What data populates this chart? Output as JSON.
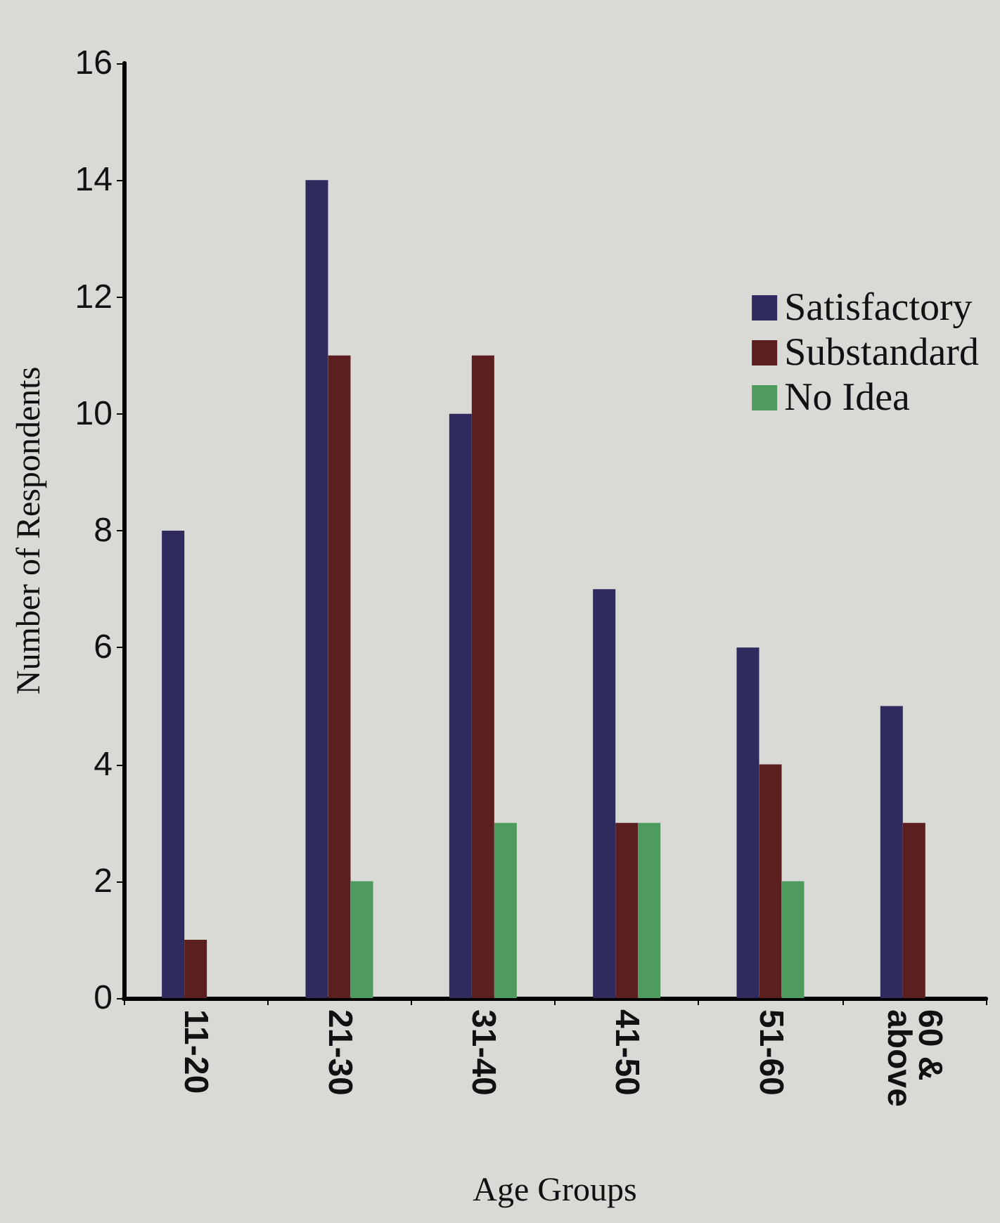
{
  "chart_data": {
    "type": "bar",
    "xlabel": "Age Groups",
    "ylabel": "Number of Respondents",
    "categories": [
      "11-20",
      "21-30",
      "31-40",
      "41-50",
      "51-60",
      "60 &\nabove"
    ],
    "series": [
      {
        "name": "Satisfactory",
        "color": "#2f2b5e",
        "values": [
          8,
          14,
          10,
          7,
          6,
          5
        ]
      },
      {
        "name": "Substandard",
        "color": "#5c1f1f",
        "values": [
          1,
          11,
          11,
          3,
          4,
          3
        ]
      },
      {
        "name": "No Idea",
        "color": "#4f9a5e",
        "values": [
          0,
          2,
          3,
          3,
          2,
          0
        ]
      }
    ],
    "ylim": [
      0,
      16
    ],
    "yticks": [
      0,
      2,
      4,
      6,
      8,
      10,
      12,
      14,
      16
    ],
    "grid": false,
    "legend": "top right"
  }
}
